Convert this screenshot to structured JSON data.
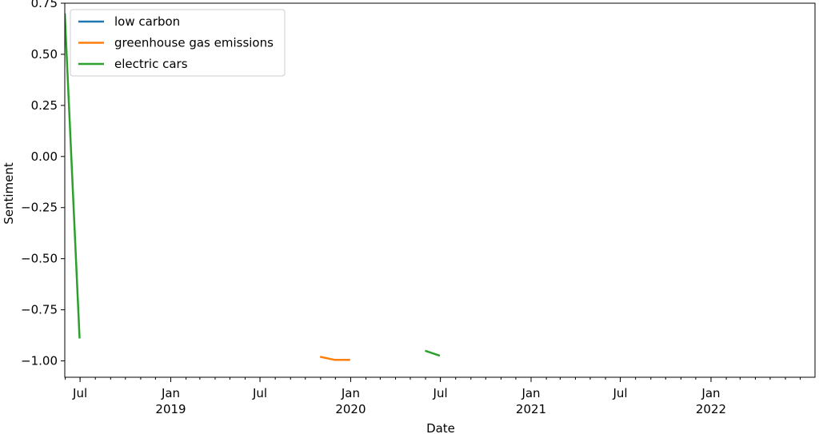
{
  "chart_data": {
    "type": "line",
    "xlabel": "Date",
    "ylabel": "Sentiment",
    "x_range": [
      "2018-05-31",
      "2022-07-31"
    ],
    "ylim": [
      -1.08,
      0.75
    ],
    "grid": false,
    "legend_position": "top-left",
    "y_ticks": [
      0.75,
      0.5,
      0.25,
      0.0,
      -0.25,
      -0.5,
      -0.75,
      -1.0
    ],
    "y_tick_labels": [
      "0.75",
      "0.50",
      "0.25",
      "0.00",
      "−0.25",
      "−0.50",
      "−0.75",
      "−1.00"
    ],
    "x_major_ticks": [
      {
        "date": "2018-07-01",
        "label": "Jul",
        "year": ""
      },
      {
        "date": "2019-01-01",
        "label": "Jan",
        "year": "2019"
      },
      {
        "date": "2019-07-01",
        "label": "Jul",
        "year": ""
      },
      {
        "date": "2020-01-01",
        "label": "Jan",
        "year": "2020"
      },
      {
        "date": "2020-07-01",
        "label": "Jul",
        "year": ""
      },
      {
        "date": "2021-01-01",
        "label": "Jan",
        "year": "2021"
      },
      {
        "date": "2021-07-01",
        "label": "Jul",
        "year": ""
      },
      {
        "date": "2022-01-01",
        "label": "Jan",
        "year": "2022"
      }
    ],
    "series": [
      {
        "name": "low carbon",
        "color": "#1f77b4",
        "points": []
      },
      {
        "name": "greenhouse gas emissions",
        "color": "#ff7f0e",
        "points": [
          {
            "x": "2019-10-31",
            "y": -0.98
          },
          {
            "x": "2019-11-30",
            "y": -0.995
          },
          {
            "x": "2019-12-31",
            "y": -0.995
          }
        ]
      },
      {
        "name": "electric cars",
        "color": "#2ca02c",
        "points": [
          {
            "x": "2018-05-31",
            "y": 0.7
          },
          {
            "x": "2018-06-30",
            "y": -0.89
          },
          {
            "x": "2020-05-31",
            "y": -0.95
          },
          {
            "x": "2020-06-30",
            "y": -0.975
          }
        ],
        "segments": [
          [
            0,
            1
          ],
          [
            2,
            3
          ]
        ]
      }
    ]
  }
}
